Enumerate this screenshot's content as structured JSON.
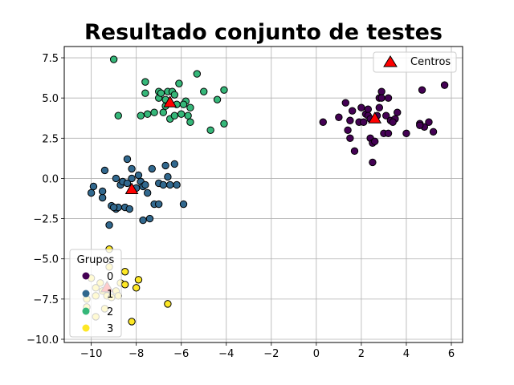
{
  "chart_data": {
    "type": "scatter",
    "title": "Resultado conjunto de testes",
    "xlabel": "",
    "ylabel": "",
    "xlim": [
      -11.2,
      6.5
    ],
    "ylim": [
      -10.2,
      8.2
    ],
    "xticks": [
      -10,
      -8,
      -6,
      -4,
      -2,
      0,
      2,
      4,
      6
    ],
    "yticks": [
      -10.0,
      -7.5,
      -5.0,
      -2.5,
      0.0,
      2.5,
      5.0,
      7.5
    ],
    "xtick_labels": [
      "−10",
      "−8",
      "−6",
      "−4",
      "−2",
      "0",
      "2",
      "4",
      "6"
    ],
    "ytick_labels": [
      "−10.0",
      "−7.5",
      "−5.0",
      "−2.5",
      "0.0",
      "2.5",
      "5.0",
      "7.5"
    ],
    "grid": true,
    "colors": {
      "0": "#440154",
      "1": "#31688e",
      "2": "#35b779",
      "3": "#fde725",
      "centers": "#ff0000"
    },
    "groups_legend": {
      "title": "Grupos",
      "placement": "lower-left",
      "labels": [
        "0",
        "1",
        "2",
        "3"
      ]
    },
    "centers_legend": {
      "label": "Centros",
      "placement": "upper-right"
    },
    "series": [
      {
        "name": "0",
        "points": [
          [
            0.3,
            3.5
          ],
          [
            1.0,
            3.8
          ],
          [
            1.3,
            4.7
          ],
          [
            1.4,
            3.0
          ],
          [
            1.5,
            2.5
          ],
          [
            1.5,
            3.6
          ],
          [
            1.6,
            4.2
          ],
          [
            1.7,
            1.7
          ],
          [
            1.9,
            3.5
          ],
          [
            2.0,
            4.4
          ],
          [
            2.1,
            3.5
          ],
          [
            2.2,
            4.0
          ],
          [
            2.3,
            4.3
          ],
          [
            2.3,
            3.9
          ],
          [
            2.4,
            3.7
          ],
          [
            2.4,
            2.5
          ],
          [
            2.5,
            1.0
          ],
          [
            2.5,
            2.2
          ],
          [
            2.6,
            2.3
          ],
          [
            2.7,
            3.9
          ],
          [
            2.8,
            5.0
          ],
          [
            2.8,
            4.4
          ],
          [
            2.9,
            5.4
          ],
          [
            2.9,
            5.0
          ],
          [
            3.0,
            2.8
          ],
          [
            3.1,
            3.9
          ],
          [
            3.2,
            2.8
          ],
          [
            3.2,
            5.0
          ],
          [
            3.3,
            3.6
          ],
          [
            3.5,
            3.7
          ],
          [
            3.6,
            4.1
          ],
          [
            4.0,
            2.8
          ],
          [
            4.6,
            3.4
          ],
          [
            4.7,
            5.5
          ],
          [
            4.8,
            3.2
          ],
          [
            5.0,
            3.5
          ],
          [
            5.2,
            2.9
          ],
          [
            5.7,
            5.8
          ],
          [
            4.6,
            3.3
          ],
          [
            3.4,
            3.5
          ]
        ]
      },
      {
        "name": "1",
        "points": [
          [
            -10.0,
            -0.9
          ],
          [
            -9.9,
            -0.5
          ],
          [
            -9.5,
            -1.2
          ],
          [
            -9.5,
            -0.8
          ],
          [
            -9.4,
            0.5
          ],
          [
            -9.2,
            -2.9
          ],
          [
            -9.1,
            -1.7
          ],
          [
            -8.9,
            0.0
          ],
          [
            -8.9,
            -1.9
          ],
          [
            -8.8,
            -1.8
          ],
          [
            -8.7,
            -0.4
          ],
          [
            -8.6,
            -0.2
          ],
          [
            -8.5,
            -1.8
          ],
          [
            -8.4,
            1.2
          ],
          [
            -8.3,
            -1.9
          ],
          [
            -8.2,
            0.6
          ],
          [
            -8.2,
            0.0
          ],
          [
            -8.0,
            -0.6
          ],
          [
            -7.9,
            0.2
          ],
          [
            -7.8,
            -0.2
          ],
          [
            -7.7,
            -0.5
          ],
          [
            -7.7,
            -2.6
          ],
          [
            -7.6,
            -0.4
          ],
          [
            -7.5,
            -0.9
          ],
          [
            -7.4,
            -2.5
          ],
          [
            -7.3,
            0.6
          ],
          [
            -7.2,
            -1.6
          ],
          [
            -7.0,
            -1.6
          ],
          [
            -7.0,
            -0.3
          ],
          [
            -6.8,
            -0.4
          ],
          [
            -6.7,
            0.8
          ],
          [
            -6.6,
            0.1
          ],
          [
            -6.5,
            -0.4
          ],
          [
            -6.3,
            0.9
          ],
          [
            -6.2,
            -0.4
          ],
          [
            -5.9,
            -1.6
          ],
          [
            -8.4,
            -0.3
          ],
          [
            -9.0,
            -1.8
          ]
        ]
      },
      {
        "name": "2",
        "points": [
          [
            -9.0,
            7.4
          ],
          [
            -8.8,
            3.9
          ],
          [
            -7.8,
            3.9
          ],
          [
            -7.6,
            6.0
          ],
          [
            -7.6,
            5.3
          ],
          [
            -7.5,
            4.0
          ],
          [
            -7.2,
            4.1
          ],
          [
            -7.0,
            5.4
          ],
          [
            -7.0,
            5.0
          ],
          [
            -6.9,
            5.3
          ],
          [
            -6.8,
            4.1
          ],
          [
            -6.7,
            4.5
          ],
          [
            -6.6,
            5.4
          ],
          [
            -6.6,
            4.8
          ],
          [
            -6.5,
            3.7
          ],
          [
            -6.4,
            5.4
          ],
          [
            -6.3,
            5.2
          ],
          [
            -6.3,
            3.9
          ],
          [
            -6.2,
            4.6
          ],
          [
            -6.1,
            5.9
          ],
          [
            -6.0,
            4.0
          ],
          [
            -5.8,
            4.8
          ],
          [
            -5.7,
            3.9
          ],
          [
            -5.6,
            4.4
          ],
          [
            -5.6,
            3.5
          ],
          [
            -5.3,
            6.5
          ],
          [
            -5.0,
            5.4
          ],
          [
            -4.7,
            3.0
          ],
          [
            -4.4,
            4.9
          ],
          [
            -4.1,
            3.4
          ],
          [
            -4.1,
            5.5
          ],
          [
            -6.7,
            4.9
          ],
          [
            -5.9,
            4.6
          ]
        ]
      },
      {
        "name": "3",
        "points": [
          [
            -10.2,
            -7.5
          ],
          [
            -10.2,
            -8.0
          ],
          [
            -10.0,
            -6.2
          ],
          [
            -9.8,
            -6.8
          ],
          [
            -9.8,
            -8.6
          ],
          [
            -9.6,
            -6.5
          ],
          [
            -9.5,
            -7.0
          ],
          [
            -9.4,
            -8.1
          ],
          [
            -9.3,
            -6.9
          ],
          [
            -9.3,
            -7.3
          ],
          [
            -9.2,
            -4.4
          ],
          [
            -9.2,
            -5.5
          ],
          [
            -9.1,
            -7.4
          ],
          [
            -8.9,
            -7.0
          ],
          [
            -8.7,
            -6.5
          ],
          [
            -8.8,
            -7.3
          ],
          [
            -8.5,
            -5.8
          ],
          [
            -8.5,
            -6.6
          ],
          [
            -8.2,
            -8.9
          ],
          [
            -8.0,
            -6.8
          ],
          [
            -7.9,
            -6.3
          ],
          [
            -6.6,
            -7.8
          ],
          [
            -9.8,
            -7.3
          ]
        ]
      }
    ],
    "centers": [
      [
        2.6,
        3.7
      ],
      [
        -8.2,
        -0.7
      ],
      [
        -6.5,
        4.7
      ],
      [
        -9.3,
        -6.8
      ]
    ]
  }
}
